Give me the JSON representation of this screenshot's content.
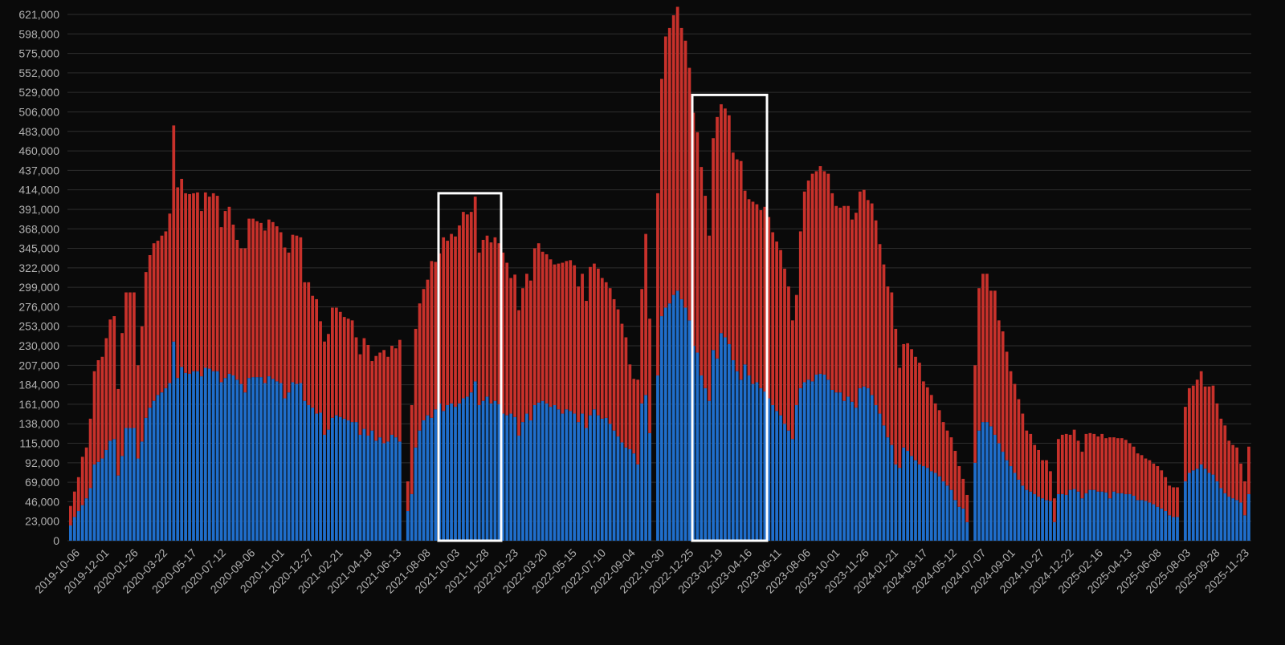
{
  "chart_data": {
    "type": "bar",
    "stacked": true,
    "title": "",
    "xlabel": "",
    "ylabel": "",
    "ylim": [
      0,
      621000
    ],
    "grid": true,
    "colors": {
      "background": "#0a0a0a",
      "grid": "#2e2e2e",
      "tick": "#b0b0b0",
      "bottom": "#1f6ecb",
      "top": "#c8312b",
      "highlight": "#ffffff"
    },
    "y_ticks": [
      0,
      23000,
      46000,
      69000,
      92000,
      115000,
      138000,
      161000,
      184000,
      207000,
      230000,
      253000,
      276000,
      299000,
      322000,
      345000,
      368000,
      391000,
      414000,
      437000,
      460000,
      483000,
      506000,
      529000,
      552000,
      575000,
      598000,
      621000
    ],
    "y_tick_labels": [
      "0",
      "23,000",
      "46,000",
      "69,000",
      "92,000",
      "115,000",
      "138,000",
      "161,000",
      "184,000",
      "207,000",
      "230,000",
      "253,000",
      "276,000",
      "299,000",
      "322,000",
      "345,000",
      "368,000",
      "391,000",
      "414,000",
      "437,000",
      "460,000",
      "483,000",
      "506,000",
      "529,000",
      "552,000",
      "575,000",
      "598,000",
      "621,000"
    ],
    "x_tick_labels": [
      "2019-10-06",
      "2019-12-01",
      "2020-01-26",
      "2020-03-22",
      "2020-05-17",
      "2020-07-12",
      "2020-09-06",
      "2020-11-01",
      "2020-12-27",
      "2021-02-21",
      "2021-04-18",
      "2021-06-13",
      "2021-08-08",
      "2021-10-03",
      "2021-11-28",
      "2022-01-23",
      "2022-03-20",
      "2022-05-15",
      "2022-07-10",
      "2022-09-04",
      "2022-10-30",
      "2022-12-25",
      "2023-02-19",
      "2023-04-16",
      "2023-06-11",
      "2023-08-06",
      "2023-10-01",
      "2023-11-26",
      "2024-01-21",
      "2024-03-17",
      "2024-05-12",
      "2024-07-07",
      "2024-09-01",
      "2024-10-27",
      "2024-12-22",
      "2025-02-16",
      "2025-04-13",
      "2025-06-08",
      "2025-08-03",
      "2025-09-28",
      "2025-11-23"
    ],
    "series": [
      {
        "name": "bottom",
        "values": [
          18000,
          28000,
          35000,
          42000,
          50000,
          62000,
          90000,
          93000,
          97000,
          107000,
          118000,
          120000,
          77000,
          100000,
          133000,
          133000,
          133000,
          97000,
          117000,
          145000,
          157000,
          165000,
          172000,
          175000,
          180000,
          186000,
          235000,
          192000,
          205000,
          198000,
          197000,
          200000,
          200000,
          194000,
          204000,
          203000,
          200000,
          200000,
          187000,
          192000,
          197000,
          195000,
          190000,
          185000,
          175000,
          192000,
          193000,
          193000,
          193000,
          186000,
          194000,
          191000,
          188000,
          186000,
          168000,
          175000,
          187000,
          185000,
          186000,
          165000,
          160000,
          157000,
          150000,
          151000,
          125000,
          131000,
          145000,
          148000,
          146000,
          144000,
          142000,
          140000,
          140000,
          125000,
          132000,
          124000,
          130000,
          118000,
          122000,
          115000,
          117000,
          125000,
          122000,
          117000,
          0,
          35000,
          55000,
          110000,
          130000,
          142000,
          148000,
          145000,
          155000,
          162000,
          153000,
          160000,
          162000,
          158000,
          162000,
          168000,
          170000,
          175000,
          188000,
          160000,
          165000,
          170000,
          162000,
          165000,
          161000,
          150000,
          148000,
          150000,
          146000,
          124000,
          140000,
          150000,
          142000,
          160000,
          163000,
          165000,
          162000,
          158000,
          160000,
          155000,
          150000,
          155000,
          153000,
          150000,
          140000,
          150000,
          133000,
          148000,
          155000,
          148000,
          144000,
          145000,
          138000,
          130000,
          123000,
          116000,
          110000,
          108000,
          103000,
          90000,
          162000,
          172000,
          127000,
          0,
          195000,
          265000,
          275000,
          280000,
          290000,
          295000,
          285000,
          275000,
          260000,
          230000,
          222000,
          195000,
          180000,
          165000,
          225000,
          215000,
          245000,
          240000,
          232000,
          213000,
          200000,
          190000,
          208000,
          195000,
          185000,
          187000,
          180000,
          176000,
          168000,
          160000,
          153000,
          148000,
          138000,
          130000,
          120000,
          160000,
          180000,
          187000,
          190000,
          188000,
          196000,
          197000,
          196000,
          190000,
          178000,
          175000,
          175000,
          165000,
          170000,
          164000,
          157000,
          180000,
          182000,
          180000,
          172000,
          160000,
          150000,
          136000,
          122000,
          113000,
          90000,
          86000,
          110000,
          106000,
          100000,
          95000,
          90000,
          88000,
          86000,
          82000,
          80000,
          76000,
          70000,
          65000,
          60000,
          48000,
          40000,
          38000,
          22000,
          0,
          92000,
          130000,
          140000,
          140000,
          135000,
          125000,
          115000,
          105000,
          95000,
          88000,
          80000,
          72000,
          65000,
          60000,
          58000,
          55000,
          52000,
          50000,
          48000,
          47000,
          22000,
          55000,
          55000,
          54000,
          60000,
          61000,
          58000,
          50000,
          56000,
          60000,
          60000,
          58000,
          58000,
          57000,
          50000,
          58000,
          56000,
          56000,
          55000,
          55000,
          53000,
          48000,
          48000,
          47000,
          45000,
          43000,
          40000,
          38000,
          35000,
          30000,
          28000,
          28000,
          0,
          70000,
          80000,
          83000,
          85000,
          90000,
          85000,
          80000,
          78000,
          70000,
          62000,
          56000,
          52000,
          50000,
          48000,
          45000,
          30000,
          55000
        ]
      },
      {
        "name": "top",
        "values": [
          23000,
          30000,
          40000,
          57000,
          60000,
          82000,
          110000,
          120000,
          120000,
          132000,
          143000,
          145000,
          102000,
          145000,
          160000,
          160000,
          160000,
          110000,
          136000,
          172000,
          180000,
          186000,
          182000,
          185000,
          185000,
          200000,
          255000,
          225000,
          222000,
          212000,
          212000,
          210000,
          211000,
          195000,
          207000,
          203000,
          210000,
          207000,
          183000,
          197000,
          197000,
          178000,
          165000,
          160000,
          170000,
          188000,
          187000,
          184000,
          182000,
          180000,
          185000,
          185000,
          183000,
          178000,
          178000,
          165000,
          174000,
          175000,
          172000,
          140000,
          145000,
          132000,
          135000,
          108000,
          110000,
          113000,
          130000,
          127000,
          124000,
          120000,
          120000,
          120000,
          100000,
          95000,
          107000,
          107000,
          82000,
          100000,
          100000,
          110000,
          100000,
          105000,
          105000,
          120000,
          0,
          35000,
          105000,
          140000,
          150000,
          155000,
          160000,
          185000,
          174000,
          177000,
          205000,
          194000,
          200000,
          201000,
          210000,
          220000,
          215000,
          213000,
          218000,
          180000,
          190000,
          190000,
          190000,
          193000,
          190000,
          190000,
          180000,
          160000,
          168000,
          148000,
          158000,
          165000,
          165000,
          185000,
          188000,
          176000,
          176000,
          174000,
          166000,
          172000,
          178000,
          175000,
          178000,
          175000,
          160000,
          165000,
          150000,
          175000,
          172000,
          173000,
          166000,
          160000,
          160000,
          155000,
          150000,
          140000,
          130000,
          100000,
          88000,
          100000,
          135000,
          190000,
          135000,
          0,
          215000,
          280000,
          320000,
          325000,
          330000,
          335000,
          320000,
          315000,
          298000,
          275000,
          260000,
          246000,
          227000,
          195000,
          250000,
          285000,
          270000,
          270000,
          270000,
          245000,
          250000,
          258000,
          205000,
          208000,
          215000,
          210000,
          210000,
          218000,
          214000,
          204000,
          200000,
          195000,
          183000,
          170000,
          140000,
          130000,
          185000,
          225000,
          235000,
          245000,
          240000,
          245000,
          240000,
          243000,
          232000,
          220000,
          218000,
          230000,
          225000,
          215000,
          230000,
          232000,
          232000,
          222000,
          226000,
          218000,
          200000,
          190000,
          178000,
          180000,
          160000,
          118000,
          122000,
          127000,
          126000,
          122000,
          120000,
          100000,
          95000,
          90000,
          82000,
          78000,
          70000,
          65000,
          62000,
          58000,
          48000,
          35000,
          32000,
          0,
          115000,
          168000,
          175000,
          175000,
          160000,
          170000,
          145000,
          142000,
          128000,
          112000,
          105000,
          95000,
          85000,
          70000,
          68000,
          58000,
          55000,
          45000,
          47000,
          35000,
          28000,
          65000,
          70000,
          72000,
          65000,
          70000,
          60000,
          55000,
          70000,
          67000,
          66000,
          65000,
          68000,
          64000,
          72000,
          64000,
          65000,
          65000,
          64000,
          60000,
          58000,
          55000,
          53000,
          50000,
          50000,
          48000,
          48000,
          45000,
          40000,
          35000,
          35000,
          35000,
          0,
          88000,
          100000,
          100000,
          105000,
          110000,
          97000,
          102000,
          105000,
          92000,
          82000,
          80000,
          66000,
          63000,
          62000,
          46000,
          40000,
          56000
        ]
      }
    ],
    "highlight_boxes": [
      {
        "label": "2021-10 to 2022-01",
        "y_top": 410000
      },
      {
        "label": "2023-01 to 2023-06",
        "y_top": 526000
      }
    ]
  }
}
